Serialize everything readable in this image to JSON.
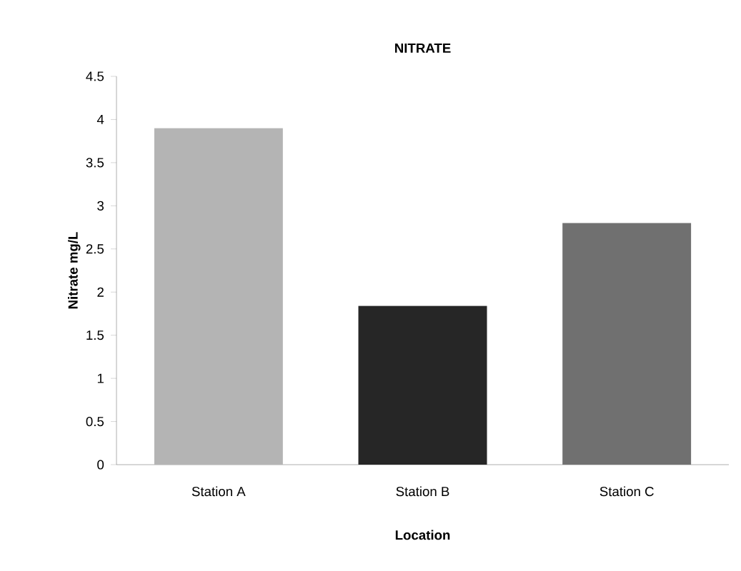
{
  "chart_data": {
    "type": "bar",
    "title": "NITRATE",
    "xlabel": "Location",
    "ylabel": "Nitrate mg/L",
    "categories": [
      "Station A",
      "Station B",
      "Station C"
    ],
    "values": [
      3.9,
      1.84,
      2.8
    ],
    "colors": [
      "#b4b4b4",
      "#262626",
      "#707070"
    ],
    "ylim": [
      0,
      4.5
    ],
    "yticks": [
      0,
      0.5,
      1,
      1.5,
      2,
      2.5,
      3,
      3.5,
      4,
      4.5
    ]
  }
}
